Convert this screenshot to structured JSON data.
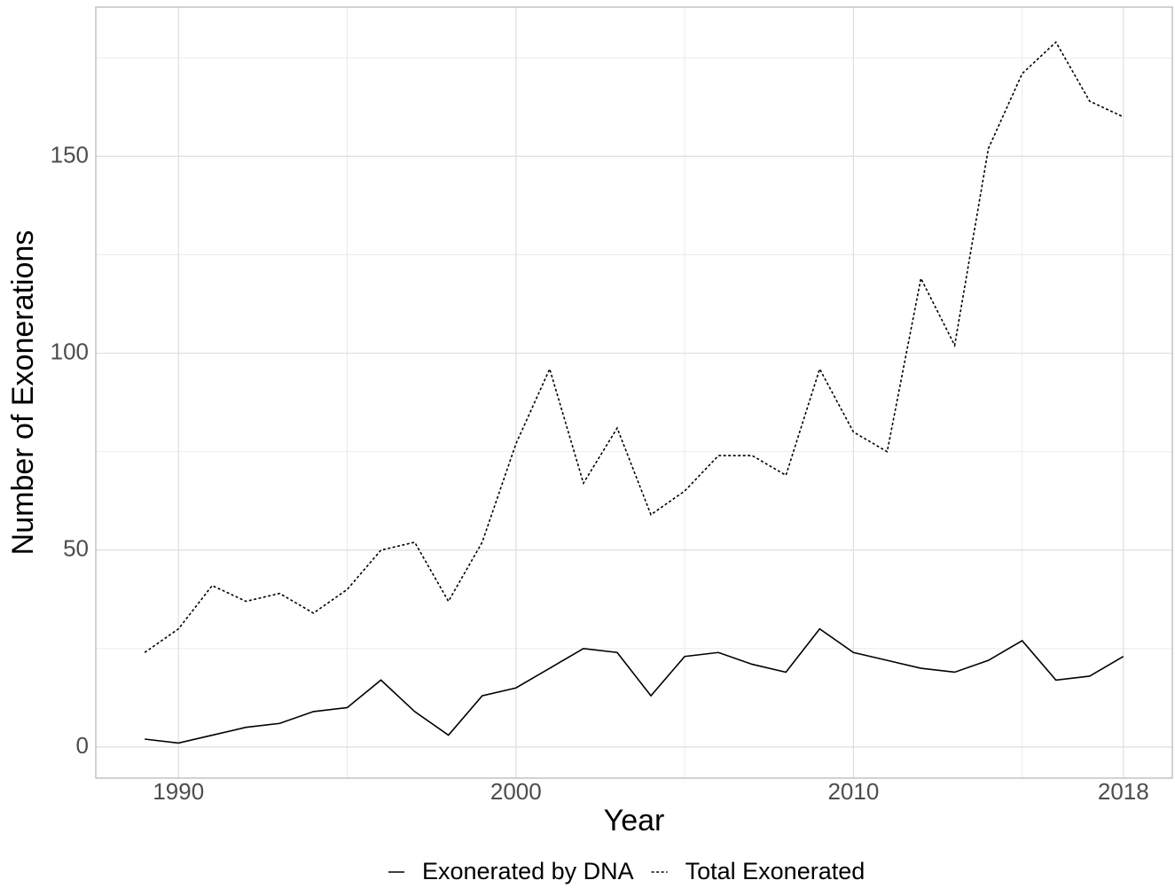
{
  "chart_data": {
    "type": "line",
    "x_label": "Year",
    "y_label": "Number of Exonerations",
    "x": [
      1989,
      1990,
      1991,
      1992,
      1993,
      1994,
      1995,
      1996,
      1997,
      1998,
      1999,
      2000,
      2001,
      2002,
      2003,
      2004,
      2005,
      2006,
      2007,
      2008,
      2009,
      2010,
      2011,
      2012,
      2013,
      2014,
      2015,
      2016,
      2017,
      2018
    ],
    "series": [
      {
        "name": "Exonerated by DNA",
        "color": "#000000",
        "dash": "solid",
        "values": [
          2,
          1,
          3,
          5,
          6,
          9,
          10,
          17,
          9,
          3,
          13,
          15,
          20,
          25,
          24,
          13,
          23,
          24,
          21,
          19,
          30,
          24,
          22,
          20,
          19,
          22,
          27,
          17,
          18,
          23
        ]
      },
      {
        "name": "Total Exonerated",
        "color": "#000000",
        "dash": "dotted",
        "values": [
          24,
          30,
          41,
          37,
          39,
          34,
          40,
          50,
          52,
          37,
          52,
          77,
          96,
          67,
          81,
          59,
          65,
          74,
          74,
          69,
          96,
          80,
          75,
          119,
          102,
          152,
          171,
          179,
          164,
          160
        ]
      }
    ],
    "xlim": [
      1987.55,
      2019.45
    ],
    "xticks": [
      1990,
      2000,
      2010,
      2018
    ],
    "x_minor_grid": [
      1995,
      2005,
      2015
    ],
    "ylim": [
      -7.9,
      187.9
    ],
    "yticks": [
      0,
      50,
      100,
      150
    ],
    "y_minor_grid": [
      25,
      75,
      125,
      175
    ],
    "grid": true,
    "legend": "bottom"
  }
}
